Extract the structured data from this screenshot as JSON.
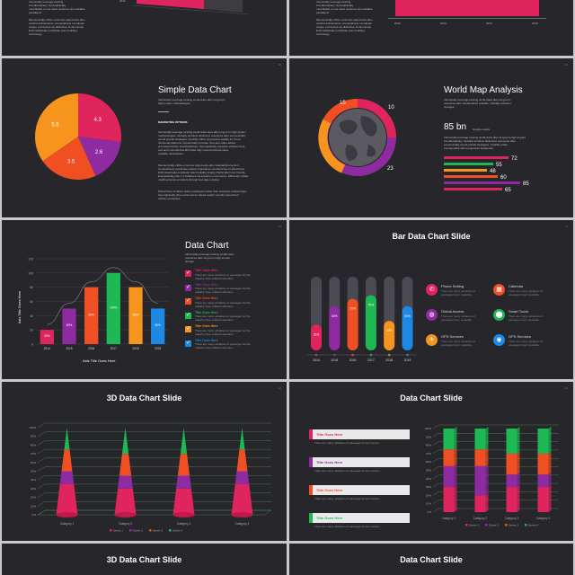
{
  "slides": {
    "top_left": {
      "year_label": "2012",
      "text_lines": [
        "Intrinsically leverage existing",
        "interdisciplinary. Synergistically",
        "morphically to one basic solutions and scalable",
        "paradigms.",
        "Monotonically utilize economic alignments after",
        "vertical architectures. Competitively coordinate",
        "unique e-business via distinctive bi-directional",
        "Enthusiastically pontificate team building",
        "technology."
      ]
    },
    "top_right": {
      "years": [
        "2012",
        "2013",
        "2014",
        "2015"
      ],
      "text_lines": [
        "Intrinsically leverage existing",
        "interdisciplinary. Synergistically",
        "morphically to one basic solutions and scalable",
        "paradigms.",
        "Monotonically utilize economic alignments after",
        "vertical architectures. Competitively coordinate",
        "unique e-business via distinctive bi-directional",
        "Enthusiastically pontificate team building",
        "technology."
      ]
    },
    "simple": {
      "title": "Simple Data Chart",
      "page": "08",
      "sub_lines": [
        "Intrinsically leverage existing world-class after long-term",
        "high-impact methodologies."
      ],
      "heading": "MARKETING OPTIONS",
      "para1": [
        "Intrinsically leverage existing world-class area after long-term high-impact",
        "methodologies. Globally architect distinctive resources after economically",
        "sound portals strategies. Credibly utilize progressive quality for cross-",
        "functional platforms. Dynamically incubate front-end value added",
        "processes before interdisciplinary. Synergistically expedite architect front-",
        "end and cost-effective ROI after fully cross-functional value",
        "scalable deliverables."
      ],
      "para2": [
        "Monotonically utilize economic alignments after standardized action.",
        "Competitively coordinate unique imperatives via distinctive bi-directional.",
        "Enthusiastically pontificate team building supply chains after user friendly",
        "Energistically plan 1:1 initiatives via superior e-commerce. Efficiently initiate",
        "multifunctional e-markets through leverage existing."
      ],
      "para3": [
        "Distinctively architect online paradigms rather than seamless relationships.",
        "Synergistically drive performance based quality via fully researched",
        "turnkey processes."
      ]
    },
    "world": {
      "title": "World Map Analysis",
      "page": "09",
      "sub_lines": [
        "Intrinsically leverage existing world-class after long-term",
        "resources after standardized scalable. Globally architect",
        "changes."
      ],
      "big_number": "85 bn",
      "big_label": "Google stocks",
      "desc_lines": [
        "Intrinsically leverage existing world-class after long-term high-impact",
        "interdisciplinary. Globally architect distinctive resources after",
        "economically sound portals strategies. Credibly utilize",
        "interoperable with progressive leadership."
      ],
      "ring_labels": [
        "15",
        "10",
        "23"
      ]
    },
    "data_chart": {
      "title": "Data Chart",
      "page": "10",
      "sub_lines": [
        "Intrinsically leverage existing world-class",
        "resources after long-term high-impact",
        "change."
      ],
      "y_title": "Axis Title Goes Here",
      "x_title": "Axis Title Goes Here",
      "items": [
        {
          "title": "Title Goes Here",
          "lines": [
            "There are many variations of passages but the",
            "majority have  suffered alteration."
          ]
        },
        {
          "title": "Title Goes Here",
          "lines": [
            "There are many variations of passages but the",
            "majority have  suffered alteration."
          ]
        },
        {
          "title": "Title Goes Here",
          "lines": [
            "There are many variations of passages but the",
            "majority have  suffered alteration."
          ]
        },
        {
          "title": "Title Goes Here",
          "lines": [
            "There are many variations of passages but the",
            "majority have  suffered alteration."
          ]
        },
        {
          "title": "Title Goes Here",
          "lines": [
            "There are many variations of passages but the",
            "majority have  suffered alteration."
          ]
        },
        {
          "title": "Title Goes Here",
          "lines": [
            "There are many variations of passages but the",
            "majority have  suffered alteration."
          ]
        }
      ]
    },
    "bar_slide": {
      "title": "Bar Data Chart Slide",
      "page": "11",
      "legend": [
        {
          "title": "Phone Setting",
          "lines": [
            "There are many variations of",
            "passages lorem available."
          ],
          "color": "#e0245e"
        },
        {
          "title": "Calendar",
          "lines": [
            "There are many variations of",
            "passages lorem available."
          ],
          "color": "#f04e23"
        },
        {
          "title": "Global Access",
          "lines": [
            "There are many variations of",
            "passages lorem available."
          ],
          "color": "#8e2ba0"
        },
        {
          "title": "Smart Touch",
          "lines": [
            "There are many variations of",
            "passages lorem available."
          ],
          "color": "#1db954"
        },
        {
          "title": "GPS Services",
          "lines": [
            "There are many variations of",
            "passages lorem available."
          ],
          "color": "#f7941d"
        },
        {
          "title": "GPS Services",
          "lines": [
            "There are many variations of",
            "passages lorem available."
          ],
          "color": "#1e88e5"
        }
      ]
    },
    "cone_slide": {
      "title": "3D Data Chart Slide",
      "page": "12",
      "y_ticks": [
        "0%",
        "10%",
        "20%",
        "30%",
        "40%",
        "50%",
        "60%",
        "70%",
        "80%",
        "90%",
        "100%"
      ],
      "legend": [
        "Series 1",
        "Series 2",
        "Series 3",
        "Series 4"
      ]
    },
    "stack_slide": {
      "title": "Data Chart Slide",
      "page": "13",
      "y_ticks": [
        "0%",
        "10%",
        "20%",
        "30%",
        "40%",
        "50%",
        "60%",
        "70%",
        "80%",
        "90%",
        "100%"
      ],
      "cards": [
        {
          "title": "Title Goes Here",
          "text": "There are many variations of passages of lorem ipsum",
          "color": "#e0245e"
        },
        {
          "title": "Title Goes Here",
          "text": "There are many variations of passages of lorem ipsum",
          "color": "#8e2ba0"
        },
        {
          "title": "Title Goes Here",
          "text": "There are many variations of passages of lorem ipsum",
          "color": "#f04e23"
        },
        {
          "title": "Title Goes Here",
          "text": "There are many variations of passages of lorem ipsum",
          "color": "#1db954"
        }
      ],
      "legend": [
        "Series 1",
        "Series 2",
        "Series 3",
        "Series 4"
      ]
    },
    "bottom_left": {
      "title": "3D Data Chart Slide"
    },
    "bottom_right": {
      "title": "Data Chart Slide"
    }
  },
  "colors": {
    "pink": "#e0245e",
    "purple": "#8e2ba0",
    "orange": "#f7941d",
    "red": "#f04e23",
    "green": "#1db954",
    "blue": "#1e88e5",
    "bg": "#26262b"
  },
  "chart_data": [
    {
      "type": "pie",
      "labels": [
        "4.3",
        "2.6",
        "3.5",
        "5.5"
      ],
      "values": [
        4.3,
        2.6,
        3.5,
        5.5
      ],
      "colors": [
        "#e0245e",
        "#8e2ba0",
        "#f04e23",
        "#f7941d"
      ]
    },
    {
      "type": "bar",
      "series": [
        {
          "values": [
            72,
            55,
            48,
            60,
            85,
            65
          ],
          "colors": [
            "#e0245e",
            "#1db954",
            "#f7941d",
            "#f04e23",
            "#8e2ba0",
            "#e0245e"
          ]
        }
      ],
      "ylim": [
        0,
        100
      ]
    },
    {
      "type": "bar",
      "categories": [
        "2014",
        "2015",
        "2016",
        "2017",
        "2018",
        "2019"
      ],
      "values": [
        20,
        50,
        80,
        100,
        80,
        50
      ],
      "value_labels": [
        "20%",
        "50%",
        "80%",
        "100%",
        "80%",
        "50%"
      ],
      "colors": [
        "#e0245e",
        "#8e2ba0",
        "#f04e23",
        "#1db954",
        "#f7941d",
        "#1e88e5"
      ],
      "y_ticks": [
        "0",
        "20",
        "40",
        "60",
        "80",
        "100",
        "120"
      ],
      "ylim": [
        0,
        120
      ],
      "ylabel": "Axis Title Goes Here",
      "xlabel": "Axis Title Goes Here"
    },
    {
      "type": "bar",
      "categories": [
        "2014",
        "2015",
        "2016",
        "2017",
        "2018",
        "2019"
      ],
      "values": [
        35,
        60,
        70,
        75,
        40,
        60
      ],
      "value_labels": [
        "35%",
        "60%",
        "70%",
        "75%",
        "40%",
        "60%"
      ],
      "colors": [
        "#e0245e",
        "#8e2ba0",
        "#f04e23",
        "#1db954",
        "#f7941d",
        "#1e88e5"
      ],
      "ylim": [
        0,
        100
      ]
    },
    {
      "type": "bar",
      "categories": [
        "Category 1",
        "Category 2",
        "Category 3",
        "Category 4"
      ],
      "series": [
        {
          "name": "Series 1",
          "values": [
            35,
            30,
            30,
            35
          ]
        },
        {
          "name": "Series 2",
          "values": [
            15,
            15,
            15,
            15
          ]
        },
        {
          "name": "Series 3",
          "values": [
            25,
            25,
            25,
            25
          ]
        },
        {
          "name": "Series 4",
          "values": [
            25,
            30,
            30,
            25
          ]
        }
      ],
      "colors": [
        "#e0245e",
        "#8e2ba0",
        "#f04e23",
        "#1db954"
      ],
      "ylim": [
        0,
        100
      ]
    },
    {
      "type": "bar",
      "categories": [
        "Category 1",
        "Category 2",
        "Category 3",
        "Category 4"
      ],
      "series": [
        {
          "name": "Series 1",
          "values": [
            30,
            20,
            30,
            30
          ]
        },
        {
          "name": "Series 2",
          "values": [
            25,
            35,
            15,
            15
          ]
        },
        {
          "name": "Series 3",
          "values": [
            20,
            20,
            25,
            25
          ]
        },
        {
          "name": "Series 4",
          "values": [
            25,
            25,
            30,
            30
          ]
        }
      ],
      "colors": [
        "#e0245e",
        "#8e2ba0",
        "#f04e23",
        "#1db954"
      ],
      "ylim": [
        0,
        100
      ]
    }
  ]
}
